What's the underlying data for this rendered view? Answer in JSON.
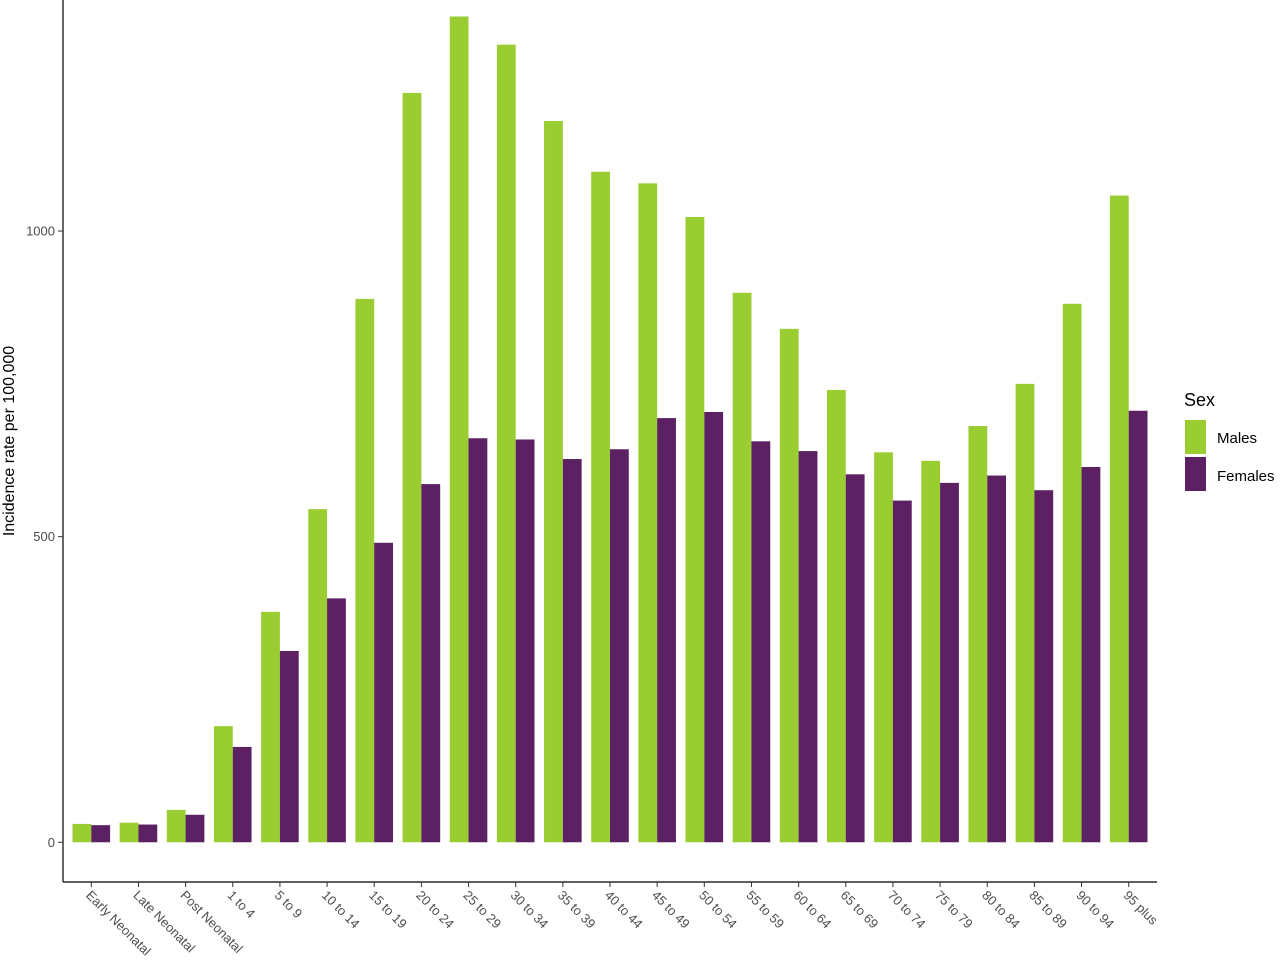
{
  "chart_data": {
    "type": "bar",
    "title": "",
    "xlabel": "",
    "ylabel": "Incidence rate per 100,000",
    "categories": [
      "Early Neonatal",
      "Late Neonatal",
      "Post Neonatal",
      "1 to 4",
      "5 to 9",
      "10 to 14",
      "15 to 19",
      "20 to 24",
      "25 to 29",
      "30 to 34",
      "35 to 39",
      "40 to 44",
      "45 to 49",
      "50 to 54",
      "55 to 59",
      "60 to 64",
      "65 to 69",
      "70 to 74",
      "75 to 79",
      "80 to 84",
      "85 to 89",
      "90 to 94",
      "95 plus"
    ],
    "series": [
      {
        "name": "Males",
        "color": "#9ACD32",
        "values": [
          30,
          32,
          53,
          190,
          377,
          545,
          889,
          1226,
          1351,
          1305,
          1180,
          1097,
          1078,
          1023,
          899,
          840,
          740,
          638,
          624,
          681,
          750,
          881,
          1058
        ]
      },
      {
        "name": "Females",
        "color": "#5B2163",
        "values": [
          28,
          29,
          45,
          156,
          313,
          399,
          490,
          586,
          661,
          659,
          627,
          643,
          694,
          704,
          656,
          640,
          602,
          559,
          588,
          600,
          576,
          614,
          706
        ]
      }
    ],
    "ylim": [
      -65,
      1378
    ],
    "yticks": [
      0,
      500,
      1000
    ],
    "grid": false,
    "legend": {
      "title": "Sex",
      "position": "right"
    }
  }
}
